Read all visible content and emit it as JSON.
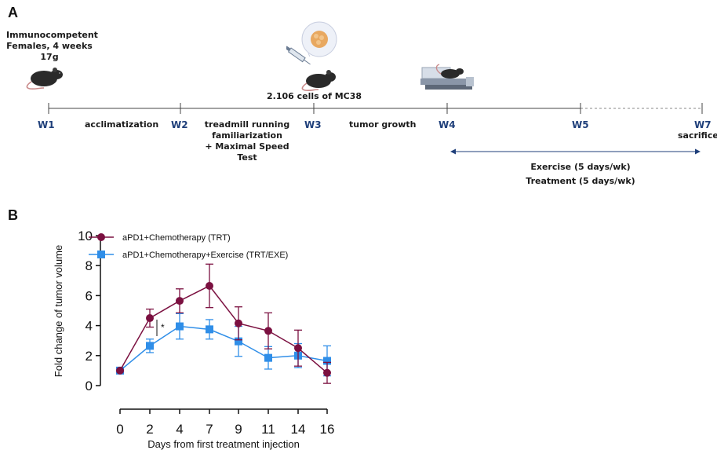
{
  "panel_a": {
    "letter": "A",
    "mouse_group": "Immunocompetent\nFemales, 4 weeks\n17g",
    "injection": "2.106 cells of MC38",
    "weeks": [
      "W1",
      "W2",
      "W3",
      "W4",
      "W5",
      "W7"
    ],
    "phases": {
      "acclimatization": "acclimatization",
      "treadmill": "treadmill running\nfamiliarization\n+ Maximal Speed Test",
      "tumor_growth": "tumor growth",
      "sacrifice": "sacrifice"
    },
    "exercise": "Exercise (5 days/wk)",
    "treatment": "Treatment (5 days/wk)"
  },
  "panel_b": {
    "letter": "B",
    "significance": "*"
  },
  "chart_data": {
    "type": "line",
    "x": [
      "0",
      "2",
      "4",
      "7",
      "9",
      "11",
      "14",
      "16"
    ],
    "ylabel": "Fold change of tumor volume",
    "xlabel": "Days from first treatment injection",
    "ylim": [
      0,
      10
    ],
    "yticks": [
      "0",
      "2",
      "4",
      "6",
      "8",
      "10"
    ],
    "legend": "top-left",
    "series": [
      {
        "name": "aPD1+Chemotherapy (TRT)",
        "color": "#7b1040",
        "marker": "circle",
        "values": [
          1.0,
          4.5,
          5.65,
          6.65,
          4.15,
          3.65,
          2.5,
          0.85
        ],
        "errors": [
          0.0,
          0.6,
          0.8,
          1.45,
          1.1,
          1.2,
          1.2,
          0.7
        ]
      },
      {
        "name": "aPD1+Chemotherapy+Exercise (TRT/EXE)",
        "color": "#2f8ee8",
        "marker": "square",
        "values": [
          1.0,
          2.65,
          3.95,
          3.75,
          2.95,
          1.85,
          2.0,
          1.65
        ],
        "errors": [
          0.0,
          0.45,
          0.85,
          0.65,
          1.0,
          0.75,
          0.8,
          1.0
        ]
      }
    ]
  }
}
